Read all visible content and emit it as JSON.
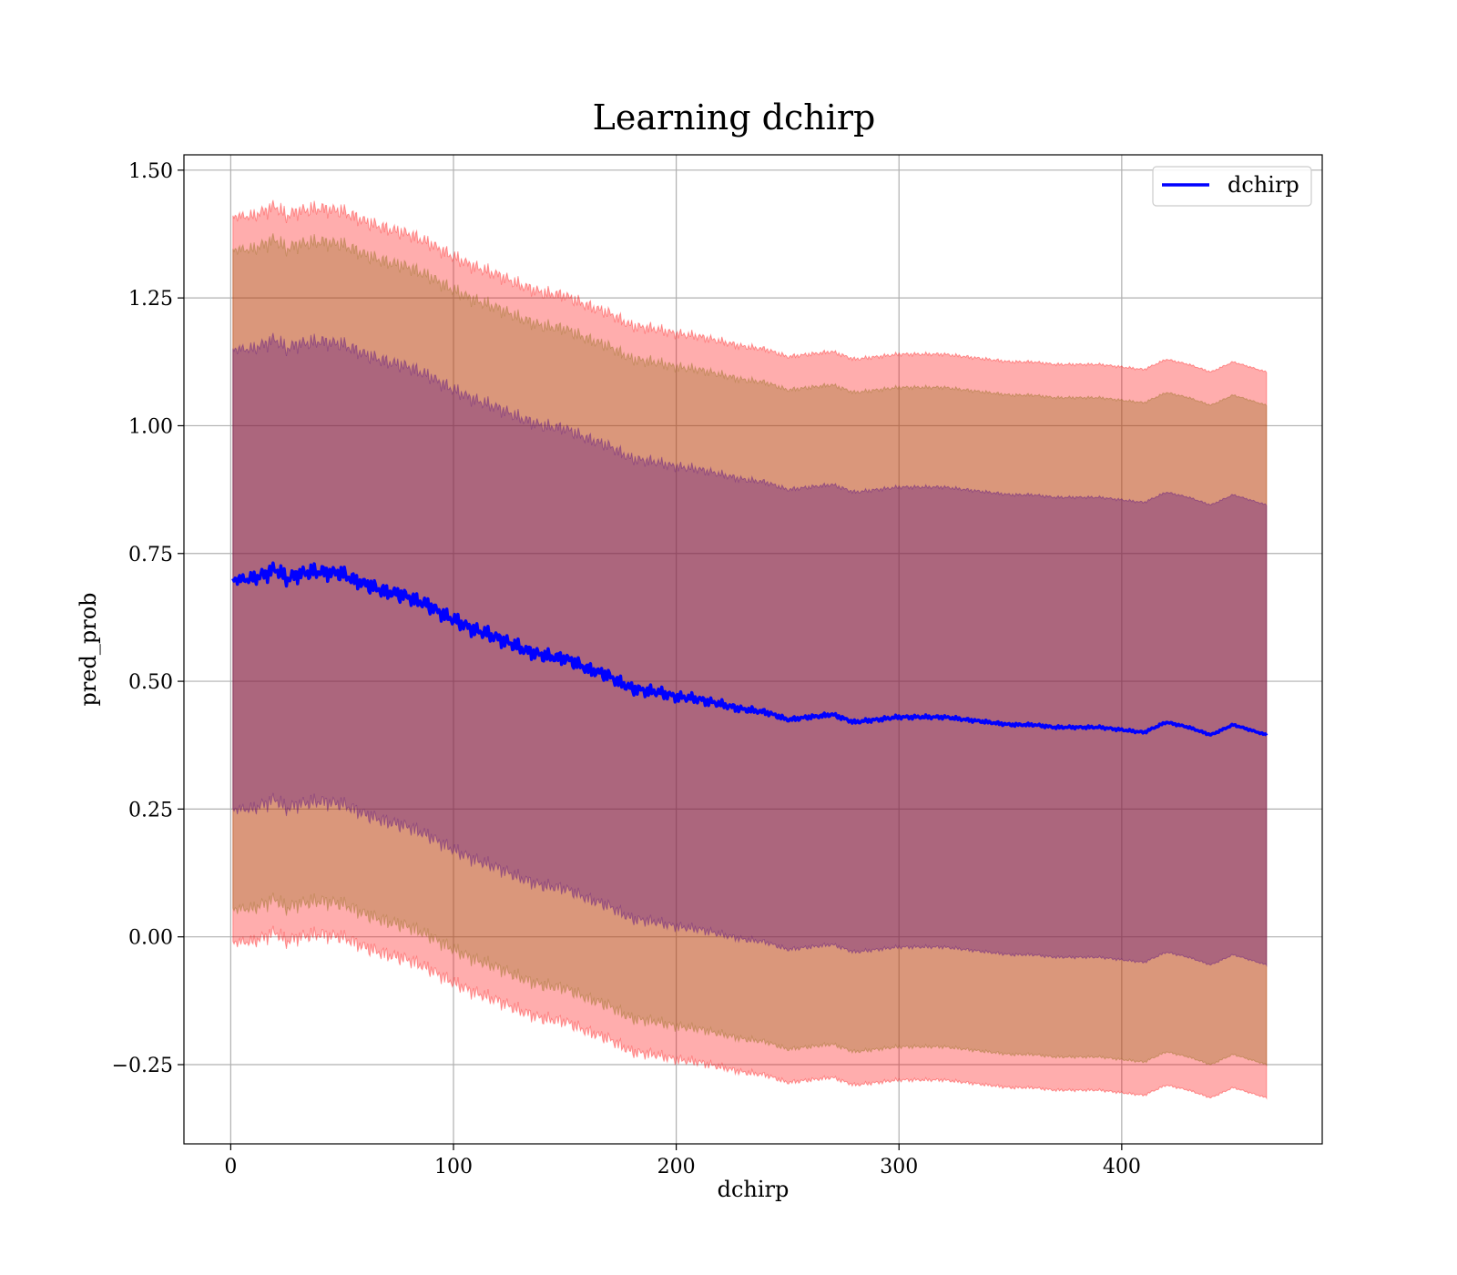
{
  "chart_data": {
    "type": "line",
    "title": "Learning dchirp",
    "xlabel": "dchirp",
    "ylabel": "pred_prob",
    "xlim": [
      -21,
      490
    ],
    "ylim": [
      -0.405,
      1.53
    ],
    "xticks": [
      0,
      100,
      200,
      300,
      400
    ],
    "xtick_labels": [
      "0",
      "100",
      "200",
      "300",
      "400"
    ],
    "yticks": [
      -0.25,
      0,
      0.25,
      0.5,
      0.75,
      1.0,
      1.25,
      1.5
    ],
    "ytick_labels": [
      "−0.25",
      "0.00",
      "0.25",
      "0.50",
      "0.75",
      "1.00",
      "1.25",
      "1.50"
    ],
    "grid": true,
    "legend": {
      "placement": "top-right",
      "entries": [
        "dchirp"
      ]
    },
    "mean_series": {
      "name": "dchirp",
      "color": "#0000ff",
      "x": [
        1,
        10,
        15,
        20,
        25,
        30,
        40,
        50,
        60,
        70,
        80,
        90,
        100,
        110,
        120,
        130,
        140,
        150,
        160,
        170,
        180,
        190,
        200,
        210,
        220,
        230,
        240,
        250,
        260,
        270,
        280,
        290,
        300,
        310,
        320,
        330,
        340,
        350,
        360,
        370,
        380,
        390,
        400,
        410,
        420,
        430,
        440,
        450,
        465
      ],
      "y": [
        0.7,
        0.7,
        0.71,
        0.72,
        0.7,
        0.71,
        0.715,
        0.71,
        0.69,
        0.675,
        0.665,
        0.645,
        0.62,
        0.6,
        0.585,
        0.565,
        0.55,
        0.545,
        0.525,
        0.51,
        0.485,
        0.48,
        0.47,
        0.465,
        0.455,
        0.445,
        0.44,
        0.425,
        0.43,
        0.435,
        0.42,
        0.425,
        0.43,
        0.43,
        0.43,
        0.425,
        0.42,
        0.415,
        0.415,
        0.41,
        0.41,
        0.41,
        0.405,
        0.4,
        0.42,
        0.41,
        0.395,
        0.415,
        0.395
      ]
    },
    "bands": [
      {
        "name": "outer band",
        "color": "#ff0000",
        "opacity": 0.32,
        "offset": 0.71
      },
      {
        "name": "middle band",
        "color": "#8b6914",
        "opacity": 0.32,
        "offset": 0.645
      },
      {
        "name": "inner band",
        "color": "#4b0082",
        "opacity": 0.32,
        "offset": 0.45
      }
    ],
    "noise_amplitude": [
      {
        "x": 0,
        "amp": 0.006
      },
      {
        "x": 15,
        "amp": 0.014
      },
      {
        "x": 180,
        "amp": 0.011
      },
      {
        "x": 250,
        "amp": 0.004
      },
      {
        "x": 465,
        "amp": 0.0015
      }
    ]
  }
}
